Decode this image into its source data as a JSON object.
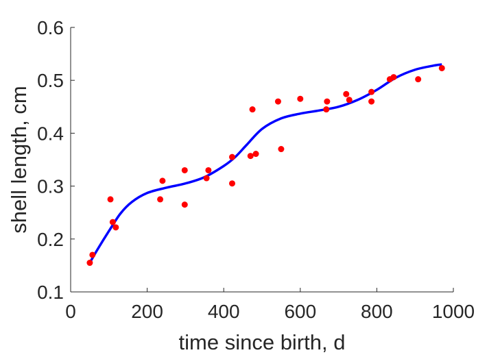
{
  "chart_data": {
    "type": "scatter",
    "xlabel": "time since birth, d",
    "ylabel": "shell length, cm",
    "xlim": [
      0,
      1000
    ],
    "ylim": [
      0.1,
      0.6
    ],
    "xticks": [
      "0",
      "200",
      "400",
      "600",
      "800",
      "1000"
    ],
    "yticks": [
      "0.1",
      "0.2",
      "0.3",
      "0.4",
      "0.5",
      "0.6"
    ],
    "grid": false,
    "series": [
      {
        "kind": "points",
        "color": "#ff0000",
        "x": [
          50,
          57,
          104,
          110,
          118,
          234,
          240,
          298,
          298,
          355,
          360,
          422,
          422,
          470,
          475,
          484,
          542,
          550,
          600,
          668,
          670,
          720,
          728,
          786,
          786,
          834,
          844,
          908,
          970
        ],
        "y": [
          0.155,
          0.17,
          0.275,
          0.232,
          0.222,
          0.275,
          0.31,
          0.265,
          0.33,
          0.315,
          0.33,
          0.305,
          0.355,
          0.357,
          0.445,
          0.361,
          0.46,
          0.37,
          0.465,
          0.445,
          0.46,
          0.474,
          0.463,
          0.46,
          0.478,
          0.502,
          0.506,
          0.502,
          0.523
        ]
      },
      {
        "kind": "curve",
        "color": "#0000ff",
        "x": [
          50,
          70,
          100,
          130,
          160,
          200,
          250,
          300,
          350,
          400,
          430,
          460,
          500,
          550,
          600,
          650,
          700,
          750,
          800,
          850,
          900,
          950,
          970
        ],
        "y": [
          0.155,
          0.18,
          0.215,
          0.248,
          0.27,
          0.287,
          0.297,
          0.305,
          0.317,
          0.338,
          0.355,
          0.378,
          0.408,
          0.428,
          0.437,
          0.443,
          0.45,
          0.463,
          0.482,
          0.505,
          0.52,
          0.528,
          0.53
        ]
      }
    ]
  }
}
